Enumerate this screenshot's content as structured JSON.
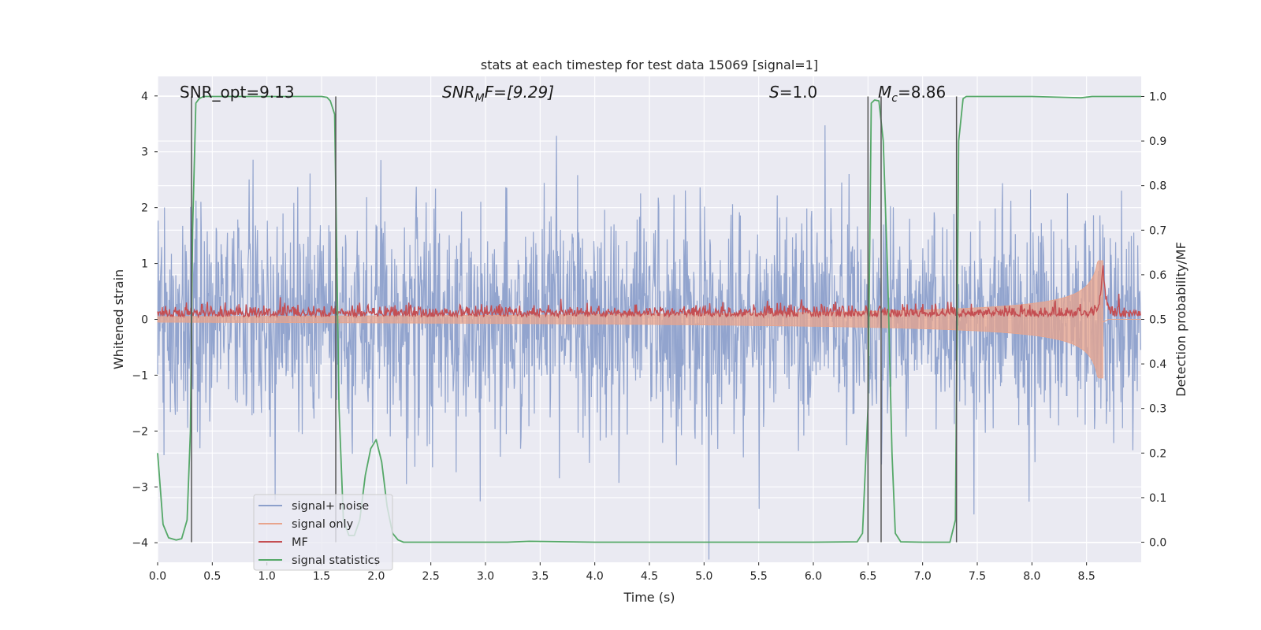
{
  "chart_data": {
    "type": "line",
    "title": "stats at each timestep for test data 15069 [signal=1]",
    "xlabel": "Time (s)",
    "ylabel": "Whitened strain",
    "ylabel_right": "Detection probability/MF",
    "xlim": [
      0,
      9
    ],
    "ylim": [
      -4.35,
      4.35
    ],
    "ylim_right": [
      -0.045,
      1.045
    ],
    "x_ticks": [
      0.0,
      0.5,
      1.0,
      1.5,
      2.0,
      2.5,
      3.0,
      3.5,
      4.0,
      4.5,
      5.0,
      5.5,
      6.0,
      6.5,
      7.0,
      7.5,
      8.0,
      8.5
    ],
    "x_tick_labels": [
      "0.0",
      "0.5",
      "1.0",
      "1.5",
      "2.0",
      "2.5",
      "3.0",
      "3.5",
      "4.0",
      "4.5",
      "5.0",
      "5.5",
      "6.0",
      "6.5",
      "7.0",
      "7.5",
      "8.0",
      "8.5"
    ],
    "y_ticks": [
      4,
      3,
      2,
      1,
      0,
      -1,
      -2,
      -3,
      -4
    ],
    "y_tick_labels": [
      "4",
      "3",
      "2",
      "1",
      "0",
      "−1",
      "−2",
      "−3",
      "−4"
    ],
    "y_right_ticks": [
      1.0,
      0.9,
      0.8,
      0.7,
      0.6,
      0.5,
      0.4,
      0.3,
      0.2,
      0.1,
      0.0
    ],
    "y_right_tick_labels": [
      "1.0",
      "0.9",
      "0.8",
      "0.7",
      "0.6",
      "0.5",
      "0.4",
      "0.3",
      "0.2",
      "0.1",
      "0.0"
    ],
    "grid": true,
    "legend_position": "lower-left",
    "annotations": {
      "snr_opt": "SNR_opt=9.13",
      "snr_mf": {
        "main": "SNR",
        "sub": "M",
        "rest": "F=[9.29]"
      },
      "s_value": {
        "main": "S",
        "rest": "=1.0"
      },
      "chirp_mass": {
        "main": "M",
        "sub": "c",
        "rest": "=8.86"
      }
    },
    "vertical_lines_s": [
      0.31,
      1.63,
      6.5,
      6.62,
      7.31
    ],
    "series": [
      {
        "name": "signal+ noise",
        "color": "#8da0cb",
        "description": "whitened noisy strain, roughly |y| < 4"
      },
      {
        "name": "signal only",
        "color": "#e8a48c",
        "chirp_start_s": 0.0,
        "merger_s": 8.65,
        "amp_start": 0.05,
        "amp_merger": 1.05
      },
      {
        "name": "MF",
        "color": "#c44e52",
        "baseline_right": 0.51,
        "peak_s": 8.65,
        "peak_right": 0.625
      },
      {
        "name": "signal statistics",
        "color": "#55a868",
        "axis": "right",
        "x": [
          0.0,
          0.05,
          0.1,
          0.17,
          0.22,
          0.27,
          0.3,
          0.32,
          0.35,
          0.38,
          0.42,
          0.5,
          1.0,
          1.5,
          1.55,
          1.58,
          1.62,
          1.66,
          1.7,
          1.75,
          1.8,
          1.85,
          1.9,
          1.95,
          2.0,
          2.05,
          2.1,
          2.15,
          2.2,
          2.25,
          3.2,
          3.4,
          4.0,
          5.0,
          6.0,
          6.4,
          6.45,
          6.5,
          6.53,
          6.56,
          6.6,
          6.64,
          6.68,
          6.72,
          6.75,
          6.8,
          7.0,
          7.25,
          7.3,
          7.33,
          7.37,
          7.4,
          8.0,
          8.3,
          8.45,
          8.55,
          9.0
        ],
        "y": [
          0.2,
          0.04,
          0.01,
          0.005,
          0.008,
          0.05,
          0.25,
          0.7,
          0.985,
          0.995,
          1.0,
          1.0,
          1.0,
          1.0,
          0.998,
          0.99,
          0.96,
          0.3,
          0.05,
          0.015,
          0.015,
          0.05,
          0.15,
          0.21,
          0.23,
          0.18,
          0.08,
          0.02,
          0.005,
          0.0,
          0.0,
          0.002,
          0.0,
          0.0,
          0.0,
          0.001,
          0.02,
          0.3,
          0.985,
          0.992,
          0.99,
          0.9,
          0.6,
          0.2,
          0.02,
          0.001,
          0.0,
          0.0,
          0.05,
          0.9,
          0.995,
          1.0,
          1.0,
          0.998,
          0.997,
          1.0,
          1.0
        ]
      }
    ]
  }
}
